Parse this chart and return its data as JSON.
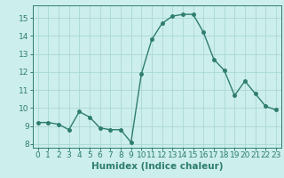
{
  "x": [
    0,
    1,
    2,
    3,
    4,
    5,
    6,
    7,
    8,
    9,
    10,
    11,
    12,
    13,
    14,
    15,
    16,
    17,
    18,
    19,
    20,
    21,
    22,
    23
  ],
  "y": [
    9.2,
    9.2,
    9.1,
    8.8,
    9.8,
    9.5,
    8.9,
    8.8,
    8.8,
    8.1,
    11.9,
    13.8,
    14.7,
    15.1,
    15.2,
    15.2,
    14.2,
    12.7,
    12.1,
    10.7,
    11.5,
    10.8,
    10.1,
    9.9
  ],
  "line_color": "#2e7d6e",
  "marker": "o",
  "markersize": 2.5,
  "linewidth": 1.0,
  "background_color": "#cceeed",
  "grid_color": "#aad8d4",
  "xlabel": "Humidex (Indice chaleur)",
  "xlim": [
    -0.5,
    23.5
  ],
  "ylim": [
    7.8,
    15.7
  ],
  "yticks": [
    8,
    9,
    10,
    11,
    12,
    13,
    14,
    15
  ],
  "xticks": [
    0,
    1,
    2,
    3,
    4,
    5,
    6,
    7,
    8,
    9,
    10,
    11,
    12,
    13,
    14,
    15,
    16,
    17,
    18,
    19,
    20,
    21,
    22,
    23
  ],
  "xlabel_fontsize": 7.5,
  "tick_fontsize": 6.5
}
